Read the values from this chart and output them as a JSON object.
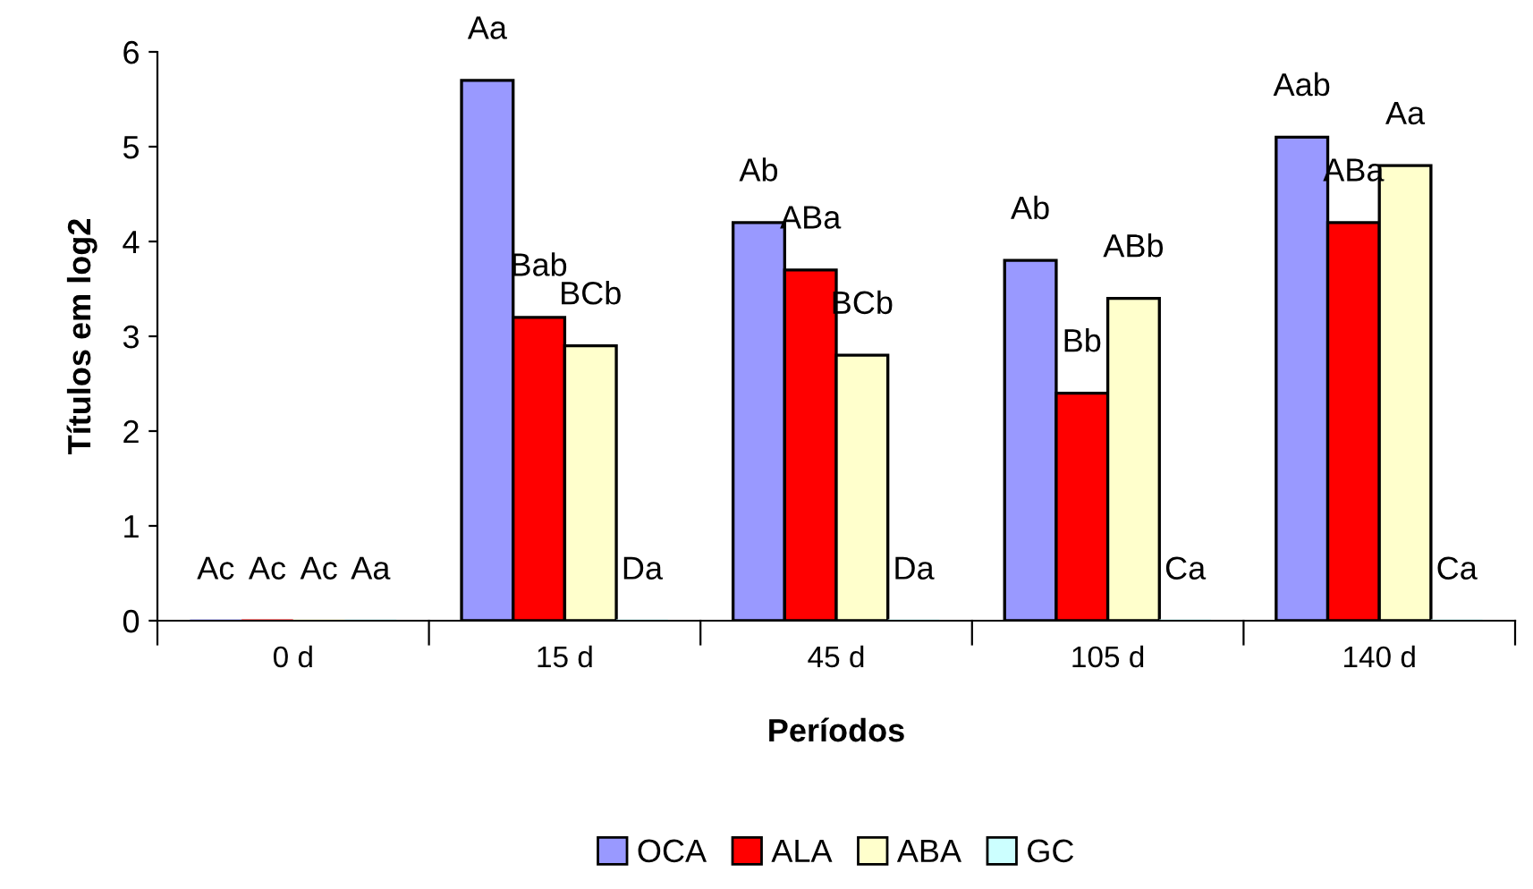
{
  "chart_data": {
    "type": "bar",
    "xlabel": "Períodos",
    "ylabel": "Títulos em log2",
    "categories": [
      "0 d",
      "15 d",
      "45 d",
      "105 d",
      "140 d"
    ],
    "series": [
      {
        "name": "OCA",
        "color": "#9999ff",
        "values": [
          0,
          5.7,
          4.2,
          3.8,
          5.1
        ],
        "value_labels": [
          "Ac",
          "Aa",
          "Ab",
          "Ab",
          "Aab"
        ]
      },
      {
        "name": "ALA",
        "color": "#ff0000",
        "values": [
          0,
          3.2,
          3.7,
          2.4,
          4.2
        ],
        "value_labels": [
          "Ac",
          "Bab",
          "ABa",
          "Bb",
          "ABa"
        ]
      },
      {
        "name": "ABA",
        "color": "#ffffcc",
        "values": [
          0,
          2.9,
          2.8,
          3.4,
          4.8
        ],
        "value_labels": [
          "Ac",
          "BCb",
          "BCb",
          "ABb",
          "Aa"
        ]
      },
      {
        "name": "GC",
        "color": "#ccffff",
        "values": [
          0,
          0,
          0,
          0,
          0
        ],
        "value_labels": [
          "Aa",
          "Da",
          "Da",
          "Ca",
          "Ca"
        ]
      }
    ],
    "ylim": [
      0,
      6
    ],
    "yticks": [
      0,
      1,
      2,
      3,
      4,
      5,
      6
    ],
    "grid": false,
    "legend": "bottom"
  }
}
